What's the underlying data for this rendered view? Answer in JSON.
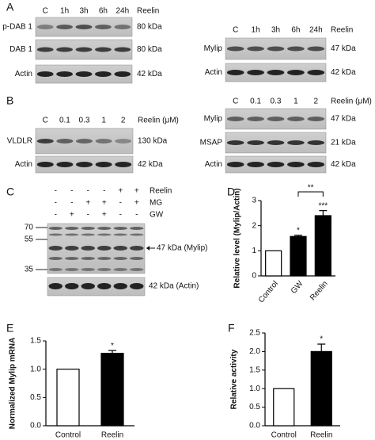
{
  "panels": {
    "A": {
      "letter": "A",
      "left": {
        "lanes": [
          "C",
          "1h",
          "3h",
          "6h",
          "24h"
        ],
        "treatment": "Reelin",
        "rows": [
          {
            "label": "p-DAB 1",
            "size": "80 kDa"
          },
          {
            "label": "DAB 1",
            "size": "80 kDa"
          },
          {
            "label": "Actin",
            "size": "42 kDa"
          }
        ]
      },
      "right": {
        "lanes": [
          "C",
          "1h",
          "3h",
          "6h",
          "24h"
        ],
        "treatment": "Reelin",
        "rows": [
          {
            "label": "Mylip",
            "size": "47 kDa"
          },
          {
            "label": "Actin",
            "size": "42 kDa"
          }
        ]
      }
    },
    "B": {
      "letter": "B",
      "left": {
        "lanes": [
          "C",
          "0.1",
          "0.3",
          "1",
          "2"
        ],
        "treatment": "Reelin (μM)",
        "rows": [
          {
            "label": "VLDLR",
            "size": "130 kDa"
          },
          {
            "label": "Actin",
            "size": "42 kDa"
          }
        ]
      },
      "right": {
        "lanes": [
          "C",
          "0.1",
          "0.3",
          "1",
          "2"
        ],
        "treatment": "Reelin (μM)",
        "rows": [
          {
            "label": "Mylip",
            "size": "47 kDa"
          },
          {
            "label": "MSAP",
            "size": "21 kDa"
          },
          {
            "label": "Actin",
            "size": "42 kDa"
          }
        ]
      }
    },
    "C": {
      "letter": "C",
      "conditions": [
        {
          "label": "Reelin",
          "signs": [
            "-",
            "-",
            "-",
            "-",
            "+",
            "+"
          ]
        },
        {
          "label": "MG",
          "signs": [
            "-",
            "-",
            "+",
            "+",
            "-",
            "+"
          ]
        },
        {
          "label": "GW",
          "signs": [
            "-",
            "+",
            "-",
            "+",
            "-",
            "-"
          ]
        }
      ],
      "markers": [
        "70",
        "55",
        "35"
      ],
      "bands": [
        "47 kDa (Mylip)",
        "42 kDa (Actin)"
      ]
    }
  },
  "chart_data": [
    {
      "type": "bar",
      "panel": "D",
      "y_label": "Relative level (Mylip/Actin)",
      "categories": [
        "Control",
        "GW",
        "Reelin"
      ],
      "values": [
        1,
        1.57,
        2.4
      ],
      "errors": [
        0,
        0.05,
        0.2
      ],
      "colors": [
        "#ffffff",
        "#000000",
        "#000000"
      ],
      "ylim": [
        0,
        3
      ],
      "yticks": [
        0,
        1,
        2,
        3
      ],
      "annotations": [
        "*",
        "***",
        "**"
      ]
    },
    {
      "type": "bar",
      "panel": "E",
      "y_label": "Normalized Mylip mRNA",
      "categories": [
        "Control",
        "Reelin"
      ],
      "values": [
        1,
        1.28
      ],
      "errors": [
        0,
        0.05
      ],
      "colors": [
        "#ffffff",
        "#000000"
      ],
      "ylim": [
        0,
        1.5
      ],
      "yticks": [
        {
          "value": 0,
          "label": "0.0"
        },
        {
          "value": 0.5,
          "label": "0.5"
        },
        {
          "value": 1,
          "label": "1.0"
        },
        {
          "value": 1.5,
          "label": "1.5"
        }
      ],
      "annotations": [
        "*"
      ]
    },
    {
      "type": "bar",
      "panel": "F",
      "y_label": "Relative activity",
      "categories": [
        "Control",
        "Reelin"
      ],
      "values": [
        1,
        2.0
      ],
      "errors": [
        0,
        0.2
      ],
      "colors": [
        "#ffffff",
        "#000000"
      ],
      "ylim": [
        0,
        2.5
      ],
      "yticks": [
        {
          "value": 0,
          "label": "0.0"
        },
        {
          "value": 0.5,
          "label": "0.5"
        },
        {
          "value": 1,
          "label": "1.0"
        },
        {
          "value": 1.5,
          "label": "1.5"
        },
        {
          "value": 2,
          "label": "2.0"
        },
        {
          "value": 2.5,
          "label": "2.5"
        }
      ],
      "annotations": [
        "*"
      ]
    }
  ]
}
